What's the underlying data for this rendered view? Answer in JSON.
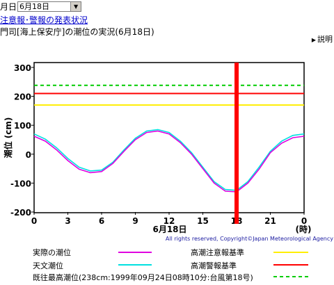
{
  "header": {
    "month_suffix": "月日",
    "date_selected": "6月18日",
    "link_text": "注意報･警報の発表状況",
    "subtitle": "門司[海上保安庁]の潮位の実況(6月18日)",
    "explain_label": "説明"
  },
  "footer": {
    "credit": "All rights reserved, Copyright©Japan Meteorological Agency"
  },
  "legend": [
    {
      "label": "実際の潮位",
      "color": "#e000e0"
    },
    {
      "label": "高潮注意報基準",
      "color": "#ffee00"
    },
    {
      "label": "天文潮位",
      "color": "#00e0e0"
    },
    {
      "label": "高潮警報基準",
      "color": "#ff0000"
    },
    {
      "label": "既往最高潮位(238cm:1999年09月24日08時10分:台風第18号)",
      "color": "#00cc00"
    }
  ],
  "chart_data": {
    "type": "line",
    "xlabel": "6月18日",
    "xunit": "(時)",
    "ylabel": "潮位 (cm)",
    "xlim": [
      0,
      24
    ],
    "ylim": [
      -200,
      300
    ],
    "xticks": [
      "0",
      "3",
      "6",
      "9",
      "12",
      "15",
      "18",
      "21",
      "0"
    ],
    "yticks": [
      "300",
      "200",
      "100",
      "0",
      "-100",
      "-200"
    ],
    "current_time_hour": 18,
    "thresholds": [
      {
        "name": "高潮注意報基準",
        "value": 170,
        "color": "#ffee00",
        "dash": false
      },
      {
        "name": "高潮警報基準",
        "value": 210,
        "color": "#ff0000",
        "dash": false
      },
      {
        "name": "既往最高潮位",
        "value": 238,
        "color": "#00cc00",
        "dash": true
      }
    ],
    "series": [
      {
        "name": "天文潮位",
        "color": "#00e0e0",
        "x": [
          0,
          1,
          2,
          3,
          4,
          5,
          6,
          7,
          8,
          9,
          10,
          11,
          12,
          13,
          14,
          15,
          16,
          17,
          18,
          19,
          20,
          21,
          22,
          23,
          24
        ],
        "y": [
          70,
          52,
          22,
          -15,
          -45,
          -58,
          -55,
          -28,
          15,
          55,
          80,
          85,
          75,
          45,
          5,
          -45,
          -95,
          -122,
          -125,
          -95,
          -45,
          10,
          45,
          65,
          70
        ]
      },
      {
        "name": "実際の潮位",
        "color": "#e000e0",
        "x": [
          0,
          1,
          2,
          3,
          4,
          5,
          6,
          7,
          8,
          9,
          10,
          11,
          12,
          13,
          14,
          15,
          16,
          17,
          18,
          19,
          20,
          21,
          22,
          23,
          24
        ],
        "y": [
          62,
          45,
          15,
          -22,
          -52,
          -64,
          -60,
          -32,
          10,
          50,
          75,
          80,
          70,
          40,
          0,
          -50,
          -100,
          -128,
          -130,
          -100,
          -52,
          5,
          38,
          57,
          62
        ]
      }
    ]
  }
}
